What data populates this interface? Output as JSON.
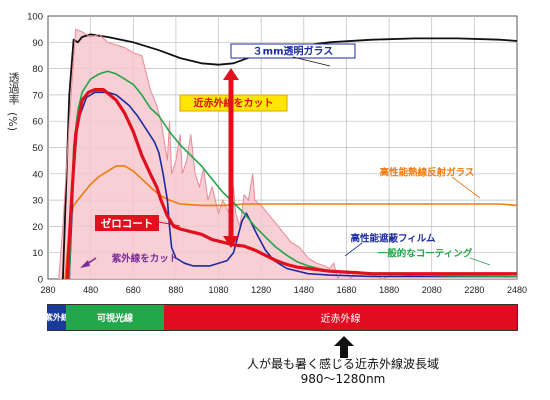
{
  "chart_data": {
    "type": "line",
    "ylabel": "透過率",
    "yunit": "(%)",
    "xlim": [
      280,
      2480
    ],
    "ylim": [
      0,
      100
    ],
    "x_ticks": [
      280,
      480,
      680,
      880,
      1080,
      1280,
      1480,
      1680,
      1880,
      2080,
      2280,
      2480
    ],
    "y_ticks": [
      0,
      10,
      20,
      30,
      40,
      50,
      60,
      70,
      80,
      90,
      100
    ],
    "grid": true,
    "series": [
      {
        "name": "３mm透明ガラス",
        "color": "#111111",
        "points": [
          [
            350,
            0
          ],
          [
            380,
            70
          ],
          [
            400,
            91
          ],
          [
            420,
            90
          ],
          [
            440,
            92
          ],
          [
            480,
            93
          ],
          [
            560,
            92
          ],
          [
            680,
            90
          ],
          [
            800,
            87
          ],
          [
            900,
            84
          ],
          [
            1000,
            82
          ],
          [
            1080,
            81.5
          ],
          [
            1150,
            82
          ],
          [
            1250,
            85
          ],
          [
            1400,
            88
          ],
          [
            1600,
            90
          ],
          [
            1800,
            91
          ],
          [
            2000,
            91.5
          ],
          [
            2200,
            91.5
          ],
          [
            2400,
            91
          ],
          [
            2480,
            90.5
          ]
        ]
      },
      {
        "name": "",
        "color": "#e88a96",
        "points": [
          [
            330,
            0
          ],
          [
            350,
            20
          ],
          [
            380,
            60
          ],
          [
            410,
            95
          ],
          [
            440,
            94
          ],
          [
            480,
            92
          ],
          [
            520,
            93
          ],
          [
            560,
            90
          ],
          [
            600,
            89
          ],
          [
            640,
            88
          ],
          [
            680,
            86
          ],
          [
            720,
            85
          ],
          [
            760,
            72
          ],
          [
            790,
            66
          ],
          [
            810,
            60
          ],
          [
            840,
            45
          ],
          [
            850,
            60
          ],
          [
            860,
            40
          ],
          [
            880,
            45
          ],
          [
            900,
            55
          ],
          [
            910,
            40
          ],
          [
            930,
            45
          ],
          [
            950,
            55
          ],
          [
            970,
            40
          ],
          [
            990,
            35
          ],
          [
            1010,
            42
          ],
          [
            1030,
            30
          ],
          [
            1050,
            35
          ],
          [
            1080,
            25
          ],
          [
            1100,
            30
          ],
          [
            1130,
            25
          ],
          [
            1150,
            35
          ],
          [
            1160,
            25
          ],
          [
            1180,
            20
          ],
          [
            1200,
            32
          ],
          [
            1220,
            30
          ],
          [
            1240,
            40
          ],
          [
            1250,
            30
          ],
          [
            1280,
            28
          ],
          [
            1310,
            25
          ],
          [
            1340,
            22
          ],
          [
            1380,
            18
          ],
          [
            1420,
            14
          ],
          [
            1460,
            12
          ],
          [
            1480,
            10
          ],
          [
            1500,
            8
          ],
          [
            1540,
            6
          ],
          [
            1580,
            5
          ],
          [
            1600,
            4
          ],
          [
            1620,
            6
          ],
          [
            1640,
            0
          ],
          [
            1650,
            2
          ],
          [
            1680,
            3
          ],
          [
            1700,
            0
          ],
          [
            1720,
            3
          ],
          [
            1800,
            2
          ],
          [
            1850,
            0
          ],
          [
            1900,
            2
          ],
          [
            2000,
            1
          ],
          [
            2060,
            2
          ],
          [
            2100,
            1
          ],
          [
            2200,
            2
          ],
          [
            2300,
            1.5
          ],
          [
            2400,
            1.5
          ],
          [
            2480,
            1
          ]
        ]
      },
      {
        "name": "高性能熱線反射ガラス",
        "color": "#ee7a10",
        "points": [
          [
            360,
            0
          ],
          [
            380,
            20
          ],
          [
            400,
            28
          ],
          [
            440,
            32
          ],
          [
            480,
            36
          ],
          [
            520,
            39
          ],
          [
            560,
            41
          ],
          [
            600,
            43
          ],
          [
            640,
            43
          ],
          [
            680,
            41
          ],
          [
            720,
            38
          ],
          [
            760,
            35
          ],
          [
            800,
            32
          ],
          [
            850,
            30
          ],
          [
            900,
            28.5
          ],
          [
            1000,
            28
          ],
          [
            1100,
            28
          ],
          [
            1200,
            28.5
          ],
          [
            1400,
            28.5
          ],
          [
            1600,
            28.5
          ],
          [
            1800,
            28.5
          ],
          [
            2000,
            28.5
          ],
          [
            2200,
            28.5
          ],
          [
            2400,
            28.5
          ],
          [
            2480,
            28
          ]
        ]
      },
      {
        "name": "高性能遮蔽フィルム",
        "color": "#1c2aa0",
        "points": [
          [
            380,
            0
          ],
          [
            400,
            40
          ],
          [
            420,
            60
          ],
          [
            460,
            69
          ],
          [
            500,
            71
          ],
          [
            560,
            71
          ],
          [
            600,
            70
          ],
          [
            660,
            66
          ],
          [
            700,
            62
          ],
          [
            740,
            57
          ],
          [
            780,
            52
          ],
          [
            800,
            48
          ],
          [
            820,
            40
          ],
          [
            840,
            30
          ],
          [
            850,
            20
          ],
          [
            860,
            12
          ],
          [
            880,
            8
          ],
          [
            920,
            6
          ],
          [
            960,
            5
          ],
          [
            1000,
            5
          ],
          [
            1040,
            5
          ],
          [
            1080,
            6
          ],
          [
            1120,
            7
          ],
          [
            1150,
            10
          ],
          [
            1170,
            16
          ],
          [
            1190,
            22
          ],
          [
            1210,
            25
          ],
          [
            1230,
            22
          ],
          [
            1260,
            17
          ],
          [
            1300,
            11
          ],
          [
            1340,
            7
          ],
          [
            1400,
            4
          ],
          [
            1500,
            2
          ],
          [
            1600,
            1.5
          ],
          [
            1800,
            1
          ],
          [
            2000,
            1
          ],
          [
            2200,
            1
          ],
          [
            2480,
            1
          ]
        ]
      },
      {
        "name": "一般的なコーティング",
        "color": "#22a44a",
        "points": [
          [
            380,
            0
          ],
          [
            400,
            50
          ],
          [
            420,
            64
          ],
          [
            440,
            71
          ],
          [
            480,
            76
          ],
          [
            520,
            78
          ],
          [
            560,
            79
          ],
          [
            600,
            78
          ],
          [
            640,
            76
          ],
          [
            680,
            74
          ],
          [
            720,
            70
          ],
          [
            760,
            65
          ],
          [
            800,
            62
          ],
          [
            850,
            56
          ],
          [
            900,
            51
          ],
          [
            950,
            47
          ],
          [
            1000,
            43
          ],
          [
            1050,
            38
          ],
          [
            1100,
            33
          ],
          [
            1150,
            29
          ],
          [
            1200,
            25
          ],
          [
            1250,
            20
          ],
          [
            1300,
            16
          ],
          [
            1350,
            12
          ],
          [
            1400,
            9
          ],
          [
            1450,
            6.5
          ],
          [
            1500,
            5
          ],
          [
            1550,
            4
          ],
          [
            1600,
            3
          ],
          [
            1700,
            2.5
          ],
          [
            1800,
            2
          ],
          [
            1900,
            2
          ],
          [
            2000,
            1.5
          ],
          [
            2200,
            1.2
          ],
          [
            2480,
            1
          ]
        ]
      },
      {
        "name": "ゼロコート",
        "color": "#e0101e",
        "points": [
          [
            370,
            0
          ],
          [
            390,
            30
          ],
          [
            410,
            55
          ],
          [
            440,
            68
          ],
          [
            470,
            71
          ],
          [
            500,
            72
          ],
          [
            540,
            72
          ],
          [
            570,
            70
          ],
          [
            600,
            68
          ],
          [
            640,
            63
          ],
          [
            680,
            56
          ],
          [
            720,
            47
          ],
          [
            760,
            40
          ],
          [
            790,
            35
          ],
          [
            810,
            30
          ],
          [
            840,
            24
          ],
          [
            870,
            20
          ],
          [
            900,
            19
          ],
          [
            950,
            18
          ],
          [
            1000,
            17
          ],
          [
            1050,
            15
          ],
          [
            1100,
            14
          ],
          [
            1150,
            13
          ],
          [
            1200,
            12.5
          ],
          [
            1250,
            11
          ],
          [
            1300,
            9
          ],
          [
            1350,
            7
          ],
          [
            1400,
            5.5
          ],
          [
            1450,
            4.5
          ],
          [
            1500,
            4
          ],
          [
            1550,
            3.5
          ],
          [
            1600,
            3
          ],
          [
            1700,
            2.5
          ],
          [
            1800,
            2
          ],
          [
            1900,
            2
          ],
          [
            2000,
            2
          ],
          [
            2100,
            2
          ],
          [
            2200,
            2
          ],
          [
            2300,
            2
          ],
          [
            2400,
            2
          ],
          [
            2480,
            2
          ]
        ]
      }
    ],
    "annotations": {
      "glass_label": "３mm透明ガラス",
      "cut_label": "近赤外線をカット",
      "reflect_label": "高性能熱線反射ガラス",
      "zero_label": "ゼロコート",
      "uv_label": "紫外線をカット",
      "film_label": "高性能遮蔽フィルム",
      "coat_label": "一般的なコーティング"
    }
  },
  "bands": {
    "uv": "紫外線",
    "visible": "可視光線",
    "nir": "近赤外線"
  },
  "note": {
    "line1": "人が最も暑く感じる近赤外線波長域",
    "line2": "980〜1280nm"
  }
}
